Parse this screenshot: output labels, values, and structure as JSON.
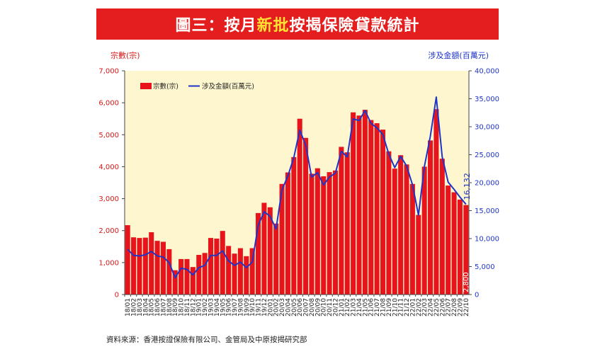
{
  "title": {
    "prefix": "圖三：按月",
    "highlight": "新批",
    "suffix": "按揭保險貸款統計"
  },
  "source_note": "資料來源：香港按證保險有限公司、金管局及中原按揭研究部",
  "colors": {
    "banner": "#e41e1e",
    "highlight": "#ffe033",
    "bar": "#e8141b",
    "line": "#1f35c8",
    "plot_bg": "#fdf6cf"
  },
  "chart_data": {
    "type": "bar",
    "left_axis_title": "宗數(宗)",
    "right_axis_title": "涉及金額(百萬元)",
    "left_ylim": [
      0,
      7000
    ],
    "right_ylim": [
      0,
      40000
    ],
    "left_ticks": [
      "0",
      "1,000",
      "2,000",
      "3,000",
      "4,000",
      "5,000",
      "6,000",
      "7,000"
    ],
    "right_ticks": [
      "0",
      "5,000",
      "10,000",
      "15,000",
      "20,000",
      "25,000",
      "30,000",
      "35,000",
      "40,000"
    ],
    "grid": false,
    "legend_position": "top-left",
    "categories": [
      "18/01",
      "18/02",
      "18/03",
      "18/04",
      "18/05",
      "18/06",
      "18/07",
      "18/08",
      "18/09",
      "18/10",
      "18/11",
      "18/12",
      "19/01",
      "19/02",
      "19/03",
      "19/04",
      "19/05",
      "19/06",
      "19/07",
      "19/08",
      "19/09",
      "19/10",
      "19/11",
      "19/12",
      "20/01",
      "20/02",
      "20/03",
      "20/04",
      "20/05",
      "20/06",
      "20/07",
      "20/08",
      "20/09",
      "20/10",
      "20/11",
      "20/12",
      "21/01",
      "21/02",
      "21/03",
      "21/04",
      "21/05",
      "21/06",
      "21/07",
      "21/08",
      "21/09",
      "21/10",
      "21/11",
      "21/12",
      "22/01",
      "22/02",
      "22/03",
      "22/04",
      "22/05",
      "22/06",
      "22/07",
      "22/08",
      "22/09",
      "22/10"
    ],
    "series": [
      {
        "name": "宗數(宗)",
        "type": "bar",
        "axis": "left",
        "values": [
          2170,
          1790,
          1770,
          1780,
          1950,
          1680,
          1650,
          1420,
          760,
          1110,
          1110,
          860,
          1240,
          1300,
          1770,
          1750,
          1990,
          1520,
          1280,
          1450,
          1200,
          1450,
          2550,
          2870,
          2730,
          2220,
          3460,
          3820,
          4300,
          5500,
          4900,
          3780,
          3950,
          3700,
          3830,
          3880,
          4620,
          4450,
          5700,
          5600,
          5780,
          5460,
          5360,
          5160,
          4480,
          3940,
          4360,
          4070,
          3460,
          2490,
          4000,
          4820,
          5800,
          4250,
          3410,
          3200,
          2970,
          2800
        ]
      },
      {
        "name": "涉及金額(百萬元)",
        "type": "line",
        "axis": "right",
        "values": [
          8100,
          7000,
          6900,
          7100,
          7700,
          6900,
          6700,
          5700,
          3000,
          4700,
          4500,
          3500,
          4800,
          5200,
          7000,
          7000,
          7800,
          6000,
          5200,
          5800,
          4800,
          5800,
          12400,
          14800,
          14000,
          11700,
          18700,
          21200,
          24500,
          29400,
          26700,
          21000,
          21800,
          19600,
          21000,
          21700,
          25600,
          24600,
          31400,
          31100,
          32900,
          30600,
          29800,
          28600,
          25100,
          22700,
          24700,
          23000,
          19600,
          14200,
          22900,
          28300,
          35300,
          24600,
          20100,
          18800,
          17400,
          16132
        ]
      }
    ],
    "annotations": [
      {
        "text": "16,132",
        "series": "涉及金額(百萬元)",
        "category": "22/10"
      },
      {
        "text": "2,800",
        "series": "宗數(宗)",
        "category": "22/10"
      }
    ]
  }
}
